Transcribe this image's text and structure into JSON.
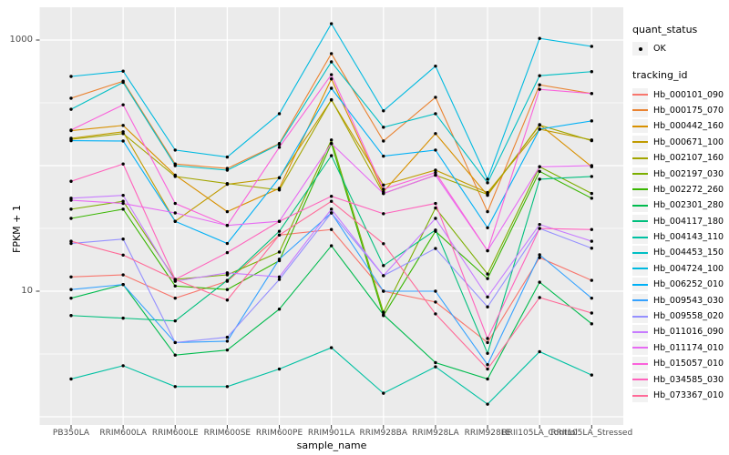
{
  "chart_data": {
    "type": "line",
    "title": "",
    "x_axis_label": "sample_name",
    "y_axis_label": "FPKM + 1",
    "y_scale": "log10",
    "y_ticks": [
      1000,
      10
    ],
    "y_tick_labels": [
      "1000",
      "10"
    ],
    "ylim": [
      0.85,
      1800
    ],
    "grid": "white major and minor gridlines on grey panel",
    "legend_position": "right",
    "quant_status_legend": {
      "title": "quant_status",
      "items": [
        {
          "label": "OK",
          "marker": "black-point"
        }
      ]
    },
    "series_legend_title": "tracking_id",
    "point_color": "#000000",
    "categories": [
      "PB350LA",
      "RRIM600LA",
      "RRIM600LE",
      "RRIM600SE",
      "RRIM600PE",
      "RRIM901LA",
      "RRIM928BA",
      "RRIM928LA",
      "RRIM928LE",
      "RRII105LA_Control",
      "RRII105LA_Stressed"
    ],
    "series": [
      {
        "name": "Hb_000101_090",
        "color": "#F8766D",
        "values": [
          13,
          13.5,
          8.8,
          12,
          28,
          31,
          10,
          8.2,
          3.9,
          18.5,
          12.2
        ]
      },
      {
        "name": "Hb_000175_070",
        "color": "#EA8331",
        "values": [
          344,
          470,
          103,
          95,
          150,
          780,
          157,
          350,
          43,
          440,
          375
        ]
      },
      {
        "name": "Hb_000442_160",
        "color": "#D89000",
        "values": [
          190,
          209,
          84,
          43,
          66,
          490,
          62,
          180,
          58,
          212,
          98
        ]
      },
      {
        "name": "Hb_000671_100",
        "color": "#C09B00",
        "values": [
          165,
          186,
          36,
          71,
          80,
          333,
          70,
          92,
          61,
          195,
          160
        ]
      },
      {
        "name": "Hb_002107_160",
        "color": "#A3A500",
        "values": [
          162,
          180,
          82,
          72,
          64,
          335,
          60,
          84,
          59,
          210,
          158
        ]
      },
      {
        "name": "Hb_002197_030",
        "color": "#7CAE00",
        "values": [
          45,
          52,
          12.4,
          13.5,
          20.5,
          160,
          6.8,
          46,
          13.7,
          98,
          60
        ]
      },
      {
        "name": "Hb_002272_260",
        "color": "#39B600",
        "values": [
          38,
          45,
          11,
          10.3,
          17.5,
          150,
          6.4,
          30,
          12.6,
          90,
          55
        ]
      },
      {
        "name": "Hb_002301_280",
        "color": "#00BB4E",
        "values": [
          8.8,
          11.3,
          3.1,
          3.4,
          7.2,
          23,
          6.5,
          2.7,
          2.0,
          11.8,
          5.5
        ]
      },
      {
        "name": "Hb_004117_180",
        "color": "#00BF7D",
        "values": [
          6.4,
          6.1,
          5.8,
          12.2,
          30,
          120,
          16,
          30.7,
          3.2,
          78,
          82
        ]
      },
      {
        "name": "Hb_004143_110",
        "color": "#00C1A3",
        "values": [
          2.0,
          2.55,
          1.74,
          1.74,
          2.4,
          3.55,
          1.54,
          2.5,
          1.26,
          3.3,
          2.15
        ]
      },
      {
        "name": "Hb_004453_150",
        "color": "#00BFC4",
        "values": [
          281,
          460,
          100,
          92,
          148,
          670,
          202,
          259,
          73,
          520,
          560
        ]
      },
      {
        "name": "Hb_004724_100",
        "color": "#00BAE0",
        "values": [
          513,
          565,
          133,
          117,
          259,
          1350,
          273,
          620,
          78,
          1030,
          890
        ]
      },
      {
        "name": "Hb_006252_010",
        "color": "#00B0F6",
        "values": [
          158,
          157,
          36,
          24,
          80,
          413,
          119,
          133,
          32,
          195,
          227
        ]
      },
      {
        "name": "Hb_009543_030",
        "color": "#35A2FF",
        "values": [
          10.3,
          11.3,
          3.9,
          4.0,
          18,
          42,
          10,
          10,
          2.6,
          19.5,
          8.8
        ]
      },
      {
        "name": "Hb_009558_020",
        "color": "#9590FF",
        "values": [
          24,
          26,
          3.9,
          4.3,
          12.4,
          42,
          13.3,
          21.9,
          7.5,
          31.6,
          22
        ]
      },
      {
        "name": "Hb_011016_090",
        "color": "#C77CFF",
        "values": [
          55,
          58,
          12,
          14,
          13,
          45,
          13.3,
          38,
          9,
          34,
          25
        ]
      },
      {
        "name": "Hb_011174_010",
        "color": "#E76BF3",
        "values": [
          53,
          50,
          42,
          33.4,
          36,
          150,
          60,
          84,
          21,
          98,
          100
        ]
      },
      {
        "name": "Hb_015057_010",
        "color": "#FA62DB",
        "values": [
          192,
          305,
          50,
          33.4,
          140,
          530,
          65,
          88,
          21,
          405,
          375
        ]
      },
      {
        "name": "Hb_034585_030",
        "color": "#FF62BC",
        "values": [
          75,
          103,
          12.4,
          20.3,
          36,
          57,
          41.4,
          50,
          4.2,
          31.6,
          31
        ]
      },
      {
        "name": "Hb_073367_010",
        "color": "#FF6A98",
        "values": [
          25,
          19.4,
          12.4,
          8.5,
          28,
          52,
          23.9,
          6.6,
          2.4,
          8.9,
          6.7
        ]
      }
    ]
  },
  "colors": {
    "panel_background": "#EBEBEB",
    "gridline": "#FFFFFF",
    "tick_mark": "#333333",
    "tick_text": "#4D4D4D",
    "point": "#000000",
    "legend_key_background": "#F2F2F2"
  }
}
